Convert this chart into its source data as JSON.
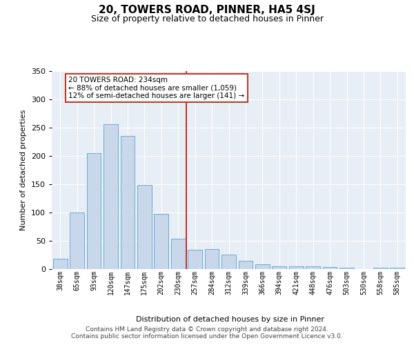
{
  "title": "20, TOWERS ROAD, PINNER, HA5 4SJ",
  "subtitle": "Size of property relative to detached houses in Pinner",
  "xlabel": "Distribution of detached houses by size in Pinner",
  "ylabel": "Number of detached properties",
  "bar_labels": [
    "38sqm",
    "65sqm",
    "93sqm",
    "120sqm",
    "147sqm",
    "175sqm",
    "202sqm",
    "230sqm",
    "257sqm",
    "284sqm",
    "312sqm",
    "339sqm",
    "366sqm",
    "394sqm",
    "421sqm",
    "448sqm",
    "476sqm",
    "503sqm",
    "530sqm",
    "558sqm",
    "585sqm"
  ],
  "bar_values": [
    18,
    100,
    204,
    256,
    235,
    149,
    97,
    53,
    34,
    35,
    25,
    15,
    8,
    5,
    5,
    5,
    4,
    2,
    0,
    3,
    3
  ],
  "bar_color": "#c8d8ea",
  "bar_edgecolor": "#6aaad4",
  "vline_x": 7.5,
  "vline_color": "#c0392b",
  "annotation_text": "20 TOWERS ROAD: 234sqm\n← 88% of detached houses are smaller (1,059)\n12% of semi-detached houses are larger (141) →",
  "annotation_box_edgecolor": "#c0392b",
  "ylim": [
    0,
    350
  ],
  "yticks": [
    0,
    50,
    100,
    150,
    200,
    250,
    300,
    350
  ],
  "footer_text": "Contains HM Land Registry data © Crown copyright and database right 2024.\nContains public sector information licensed under the Open Government Licence v3.0.",
  "plot_bg_color": "#e8eef6",
  "fig_bg_color": "#ffffff"
}
